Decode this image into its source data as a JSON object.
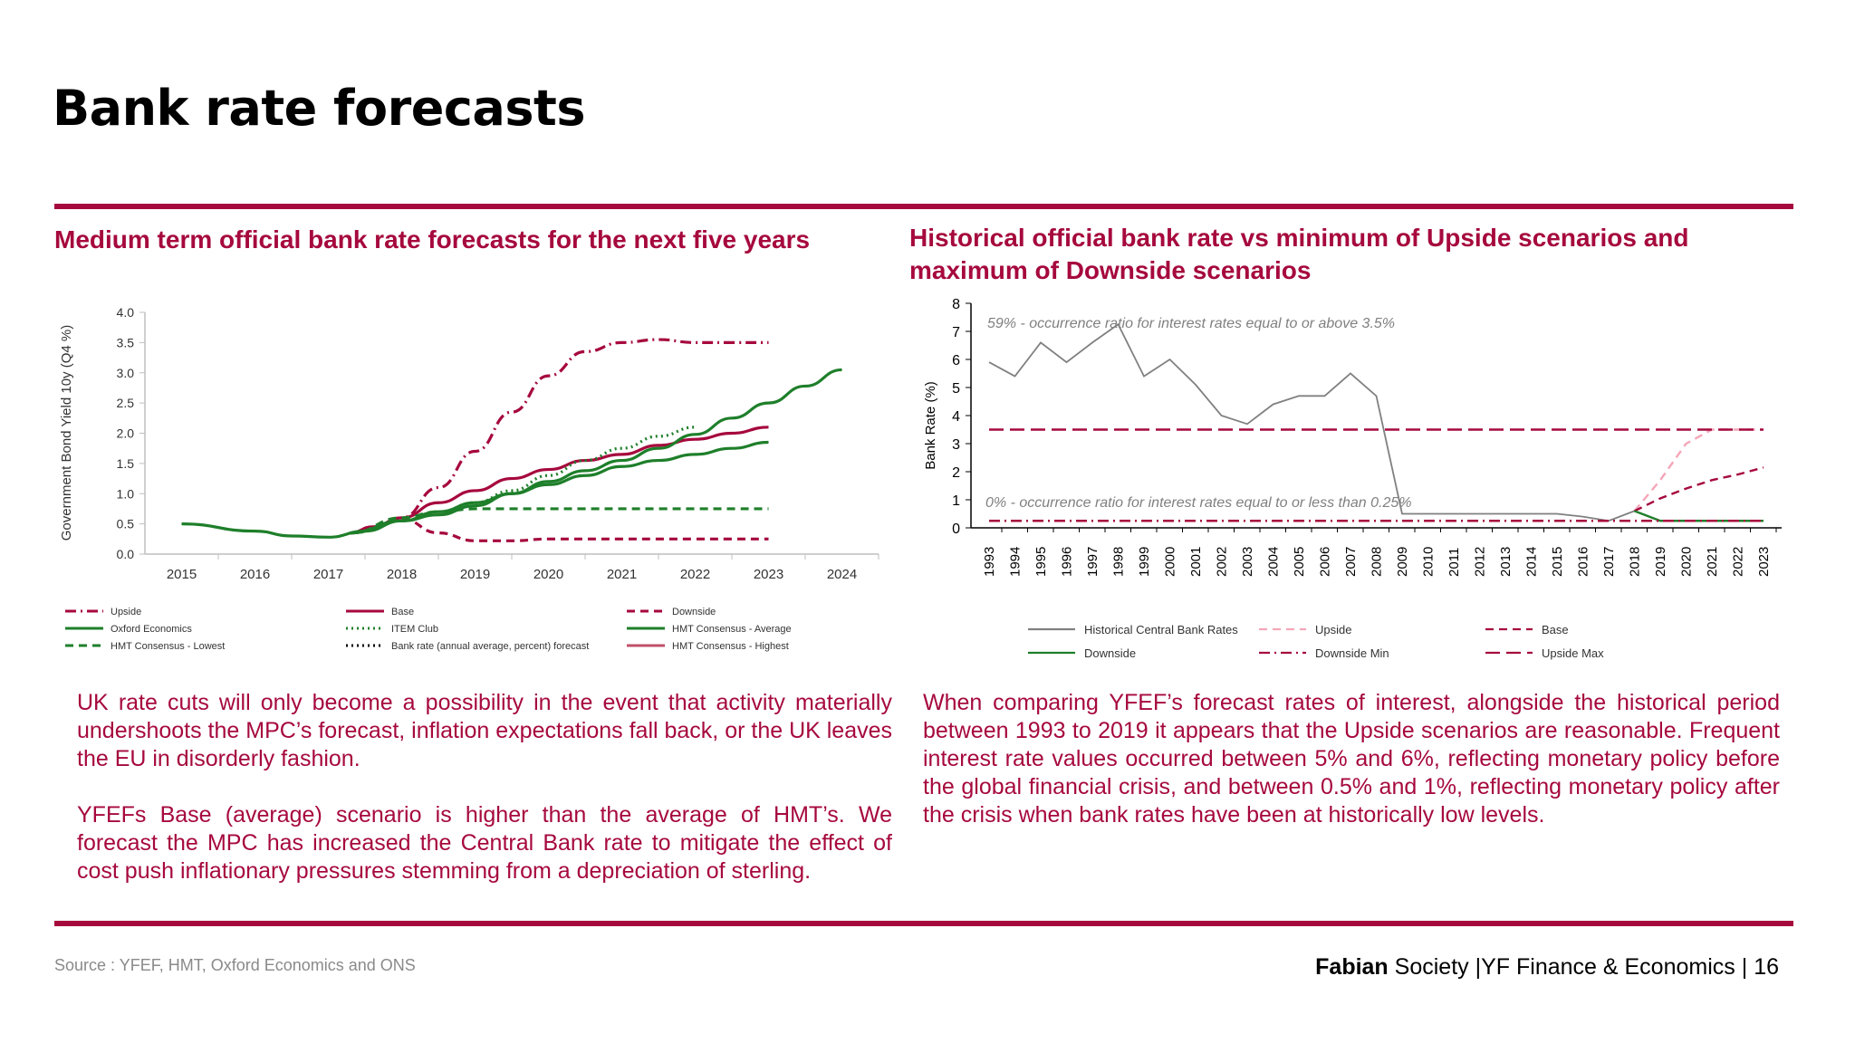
{
  "page": {
    "title": "Bank rate forecasts",
    "source": "Source : YFEF, HMT, Oxford Economics and ONS",
    "footer": {
      "org_bold": "Fabian",
      "org_rest": "Society",
      "section": "|YF Finance & Economics",
      "page_number": "16"
    },
    "accent_color": "#a6093d"
  },
  "left": {
    "heading": "Medium term official bank rate forecasts for the next five years",
    "paragraph1": "UK rate cuts will only become a possibility in the event that activity materially undershoots the MPC’s forecast, inflation expectations fall back, or the UK leaves the EU in disorderly fashion.",
    "paragraph2": "YFEFs Base (average) scenario is higher than the average of HMT’s. We forecast the MPC has increased the Central Bank rate to mitigate the effect of cost push inflationary pressures stemming from a depreciation of sterling."
  },
  "right": {
    "heading": "Historical official bank rate vs minimum of Upside scenarios and maximum of Downside scenarios",
    "paragraph": "When comparing YFEF’s forecast rates of interest, alongside the historical period between 1993 to 2019 it appears that the Upside scenarios are reasonable. Frequent interest rate values occurred between 5% and 6%, reflecting monetary policy before the global financial crisis, and between 0.5% and 1%, reflecting monetary policy after the crisis when bank rates have been at historically low levels."
  },
  "chart_data": [
    {
      "type": "line",
      "title": "Medium term official bank rate forecasts for the next five years",
      "xlabel": "",
      "ylabel": "Government Bond Yield 10y (Q4 %)",
      "ylim": [
        0,
        4.0
      ],
      "yticks": [
        "0.0",
        "0.5",
        "1.0",
        "1.5",
        "2.0",
        "2.5",
        "3.0",
        "3.5",
        "4.0"
      ],
      "categories": [
        "2015",
        "2016",
        "2017",
        "2018",
        "2019",
        "2020",
        "2021",
        "2022",
        "2023",
        "2024"
      ],
      "legend_position": "bottom",
      "series": [
        {
          "name": "Upside",
          "color": "#a6093d",
          "dash": "dashdot",
          "x": [
            2017.3,
            2017.6,
            2018,
            2018.5,
            2019,
            2019.5,
            2020,
            2020.5,
            2021,
            2021.5,
            2022,
            2022.5,
            2023
          ],
          "values": [
            0.35,
            0.45,
            0.6,
            1.1,
            1.7,
            2.35,
            2.95,
            3.35,
            3.5,
            3.55,
            3.5,
            3.5,
            3.5
          ]
        },
        {
          "name": "Base",
          "color": "#a6093d",
          "dash": "solid",
          "x": [
            2017.3,
            2017.6,
            2018,
            2018.5,
            2019,
            2019.5,
            2020,
            2020.5,
            2021,
            2021.5,
            2022,
            2022.5,
            2023
          ],
          "values": [
            0.35,
            0.45,
            0.6,
            0.85,
            1.05,
            1.25,
            1.4,
            1.55,
            1.65,
            1.8,
            1.9,
            2.0,
            2.1
          ]
        },
        {
          "name": "Downside",
          "color": "#a6093d",
          "dash": "dashed",
          "x": [
            2017.3,
            2017.6,
            2018,
            2018.5,
            2019,
            2019.5,
            2020,
            2020.5,
            2021,
            2021.5,
            2022,
            2022.5,
            2023
          ],
          "values": [
            0.35,
            0.45,
            0.58,
            0.35,
            0.22,
            0.22,
            0.25,
            0.25,
            0.25,
            0.25,
            0.25,
            0.25,
            0.25
          ]
        },
        {
          "name": "Oxford Economics",
          "color": "#1e7f2a",
          "dash": "solid",
          "x": [
            2015,
            2016,
            2016.5,
            2017,
            2017.5,
            2018,
            2018.5,
            2019,
            2019.5,
            2020,
            2020.5,
            2021,
            2021.5,
            2022,
            2022.5,
            2023,
            2023.5,
            2024
          ],
          "values": [
            0.5,
            0.38,
            0.3,
            0.28,
            0.38,
            0.55,
            0.65,
            0.8,
            1.0,
            1.2,
            1.38,
            1.55,
            1.75,
            1.98,
            2.25,
            2.5,
            2.78,
            3.05
          ]
        },
        {
          "name": "ITEM Club",
          "color": "#1e7f2a",
          "dash": "dotted",
          "x": [
            2017.3,
            2018,
            2018.5,
            2019,
            2019.5,
            2020,
            2020.5,
            2021,
            2021.5,
            2022
          ],
          "values": [
            0.35,
            0.55,
            0.7,
            0.85,
            1.05,
            1.3,
            1.55,
            1.75,
            1.95,
            2.1
          ]
        },
        {
          "name": "HMT Consensus - Average",
          "color": "#1e7f2a",
          "dash": "solid",
          "x": [
            2017.3,
            2018,
            2018.5,
            2019,
            2019.5,
            2020,
            2020.5,
            2021,
            2021.5,
            2022,
            2022.5,
            2023
          ],
          "values": [
            0.35,
            0.55,
            0.7,
            0.85,
            1.0,
            1.15,
            1.3,
            1.45,
            1.55,
            1.65,
            1.75,
            1.85
          ]
        },
        {
          "name": "HMT Consensus - Lowest",
          "color": "#1e7f2a",
          "dash": "dashed",
          "x": [
            2017.3,
            2018,
            2018.5,
            2019,
            2019.5,
            2020,
            2020.5,
            2021,
            2021.5,
            2022,
            2022.5,
            2023
          ],
          "values": [
            0.35,
            0.6,
            0.7,
            0.75,
            0.75,
            0.75,
            0.75,
            0.75,
            0.75,
            0.75,
            0.75,
            0.75
          ]
        },
        {
          "name": "Bank rate (annual average, percent) forecast",
          "color": "#000000",
          "dash": "dotted",
          "x": [],
          "values": []
        },
        {
          "name": "HMT Consensus - Highest",
          "color": "#c0506a",
          "dash": "solid",
          "x": [],
          "values": []
        }
      ]
    },
    {
      "type": "line",
      "title": "Historical official bank rate vs minimum of Upside scenarios and maximum of Downside scenarios",
      "xlabel": "",
      "ylabel": "Bank Rate (%)",
      "ylim": [
        0,
        8
      ],
      "yticks": [
        "0",
        "1",
        "2",
        "3",
        "4",
        "5",
        "6",
        "7",
        "8"
      ],
      "categories": [
        "1993",
        "1994",
        "1995",
        "1996",
        "1997",
        "1998",
        "1999",
        "2000",
        "2001",
        "2002",
        "2003",
        "2004",
        "2005",
        "2006",
        "2007",
        "2008",
        "2009",
        "2010",
        "2011",
        "2012",
        "2013",
        "2014",
        "2015",
        "2016",
        "2017",
        "2018",
        "2019",
        "2020",
        "2021",
        "2022",
        "2023"
      ],
      "annotations": [
        "59% - occurrence ratio for interest rates equal to or above 3.5%",
        "0% - occurrence ratio for interest rates equal to or less than 0.25%"
      ],
      "legend_position": "bottom",
      "series": [
        {
          "name": "Historical Central Bank Rates",
          "color": "#808080",
          "dash": "solid",
          "x": [
            1993,
            1994,
            1995,
            1996,
            1997,
            1998,
            1999,
            2000,
            2001,
            2002,
            2003,
            2004,
            2005,
            2006,
            2007,
            2008,
            2009,
            2010,
            2011,
            2012,
            2013,
            2014,
            2015,
            2016,
            2017,
            2018
          ],
          "values": [
            5.9,
            5.4,
            6.6,
            5.9,
            6.6,
            7.25,
            5.4,
            6.0,
            5.1,
            4.0,
            3.7,
            4.4,
            4.7,
            4.7,
            5.5,
            4.7,
            0.5,
            0.5,
            0.5,
            0.5,
            0.5,
            0.5,
            0.5,
            0.4,
            0.25,
            0.6
          ]
        },
        {
          "name": "Upside",
          "color": "#f4a6b8",
          "dash": "dashed",
          "x": [
            2018,
            2019,
            2020,
            2021,
            2022,
            2023
          ],
          "values": [
            0.6,
            1.7,
            3.0,
            3.5,
            3.5,
            3.5
          ]
        },
        {
          "name": "Base",
          "color": "#a6093d",
          "dash": "dashed",
          "x": [
            2018,
            2019,
            2020,
            2021,
            2022,
            2023
          ],
          "values": [
            0.6,
            1.05,
            1.4,
            1.7,
            1.9,
            2.15
          ]
        },
        {
          "name": "Downside",
          "color": "#1e7f2a",
          "dash": "solid",
          "x": [
            2018,
            2019,
            2020,
            2021,
            2022,
            2023
          ],
          "values": [
            0.6,
            0.25,
            0.25,
            0.25,
            0.25,
            0.25
          ]
        },
        {
          "name": "Downside Min",
          "color": "#a6093d",
          "dash": "dashdot",
          "x": [
            1993,
            2023
          ],
          "values": [
            0.25,
            0.25
          ]
        },
        {
          "name": "Upside Max",
          "color": "#a6093d",
          "dash": "longdash",
          "x": [
            1993,
            2023
          ],
          "values": [
            3.5,
            3.5
          ]
        }
      ]
    }
  ]
}
